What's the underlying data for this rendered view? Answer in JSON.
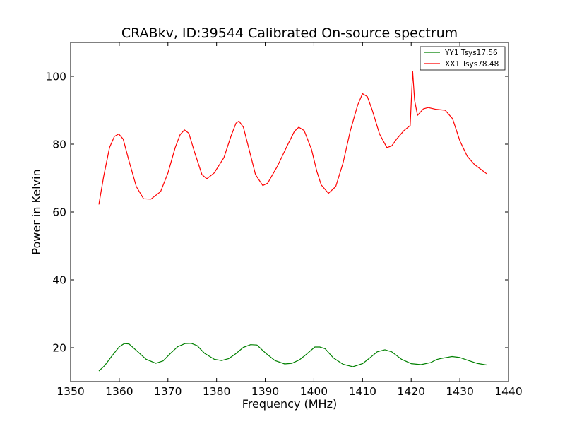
{
  "chart_data": {
    "type": "line",
    "title": "CRABkv, ID:39544 Calibrated On-source spectrum",
    "xlabel": "Frequency (MHz)",
    "ylabel": "Power in Kelvin",
    "xlim": [
      1350,
      1440
    ],
    "ylim": [
      10,
      110
    ],
    "xticks": [
      1350,
      1360,
      1370,
      1380,
      1390,
      1400,
      1410,
      1420,
      1430,
      1440
    ],
    "yticks": [
      20,
      40,
      60,
      80,
      100
    ],
    "grid": false,
    "legend_position": "top-right",
    "series": [
      {
        "name": "YY1 Tsys17.56",
        "color": "#008000",
        "x": [
          1355.8,
          1357,
          1358.5,
          1360,
          1361,
          1362,
          1363.5,
          1365.5,
          1367.5,
          1369,
          1370.5,
          1372,
          1373.5,
          1374.8,
          1376,
          1377.5,
          1379.5,
          1381,
          1382.5,
          1384,
          1385.5,
          1387,
          1388.3,
          1390,
          1392,
          1394,
          1395.5,
          1397,
          1398.5,
          1400.2,
          1401.2,
          1402.3,
          1404,
          1406,
          1408,
          1410,
          1411.5,
          1413,
          1414.6,
          1416,
          1418,
          1420,
          1422,
          1424,
          1425.2,
          1426,
          1428.4,
          1430,
          1432,
          1433.5,
          1435.5
        ],
        "y": [
          13.1,
          14.7,
          17.6,
          20.3,
          21.2,
          21.1,
          19.2,
          16.6,
          15.4,
          16.1,
          18.3,
          20.3,
          21.2,
          21.3,
          20.6,
          18.4,
          16.6,
          16.2,
          16.8,
          18.3,
          20.1,
          20.9,
          20.8,
          18.5,
          16.2,
          15.2,
          15.4,
          16.4,
          18.1,
          20.2,
          20.2,
          19.7,
          17.0,
          15.1,
          14.4,
          15.3,
          17.0,
          18.8,
          19.4,
          18.8,
          16.6,
          15.3,
          15.0,
          15.6,
          16.5,
          16.8,
          17.4,
          17.1,
          16.1,
          15.4,
          14.9
        ]
      },
      {
        "name": "XX1 Tsys78.48",
        "color": "#ff0000",
        "x": [
          1355.8,
          1356.8,
          1358,
          1359,
          1359.9,
          1360.8,
          1362,
          1363.5,
          1365,
          1366.5,
          1368.5,
          1370,
          1371.5,
          1372.5,
          1373.4,
          1374.3,
          1375.5,
          1377,
          1378,
          1379.5,
          1381.5,
          1383,
          1384,
          1384.6,
          1385.5,
          1386.5,
          1388,
          1389.5,
          1390.5,
          1392.5,
          1394.5,
          1396,
          1396.9,
          1398,
          1399.5,
          1400.6,
          1401.5,
          1403,
          1404.5,
          1406,
          1407.5,
          1409,
          1410,
          1411,
          1412,
          1413.5,
          1415,
          1416,
          1417,
          1418.5,
          1419.8,
          1420.3,
          1420.7,
          1421.3,
          1422.5,
          1423.5,
          1425,
          1427,
          1428.5,
          1430,
          1431.5,
          1433,
          1434.2,
          1435.5
        ],
        "y": [
          62.2,
          70.5,
          79.0,
          82.3,
          83.0,
          81.5,
          75.0,
          67.5,
          63.9,
          63.8,
          66.0,
          71.5,
          79.0,
          82.8,
          84.2,
          83.2,
          77.5,
          71.0,
          69.8,
          71.5,
          76.0,
          82.5,
          86.2,
          86.8,
          85.0,
          79.5,
          71.0,
          67.8,
          68.5,
          73.5,
          79.5,
          83.8,
          85.0,
          84.0,
          78.5,
          72.0,
          68.0,
          65.5,
          67.5,
          74.5,
          84.0,
          91.5,
          94.9,
          94.0,
          90.0,
          83.0,
          79.0,
          79.5,
          81.5,
          84.0,
          85.5,
          101.5,
          93.0,
          88.5,
          90.4,
          90.8,
          90.3,
          90.0,
          87.5,
          81.0,
          76.5,
          74.0,
          72.7,
          71.3
        ]
      }
    ]
  }
}
